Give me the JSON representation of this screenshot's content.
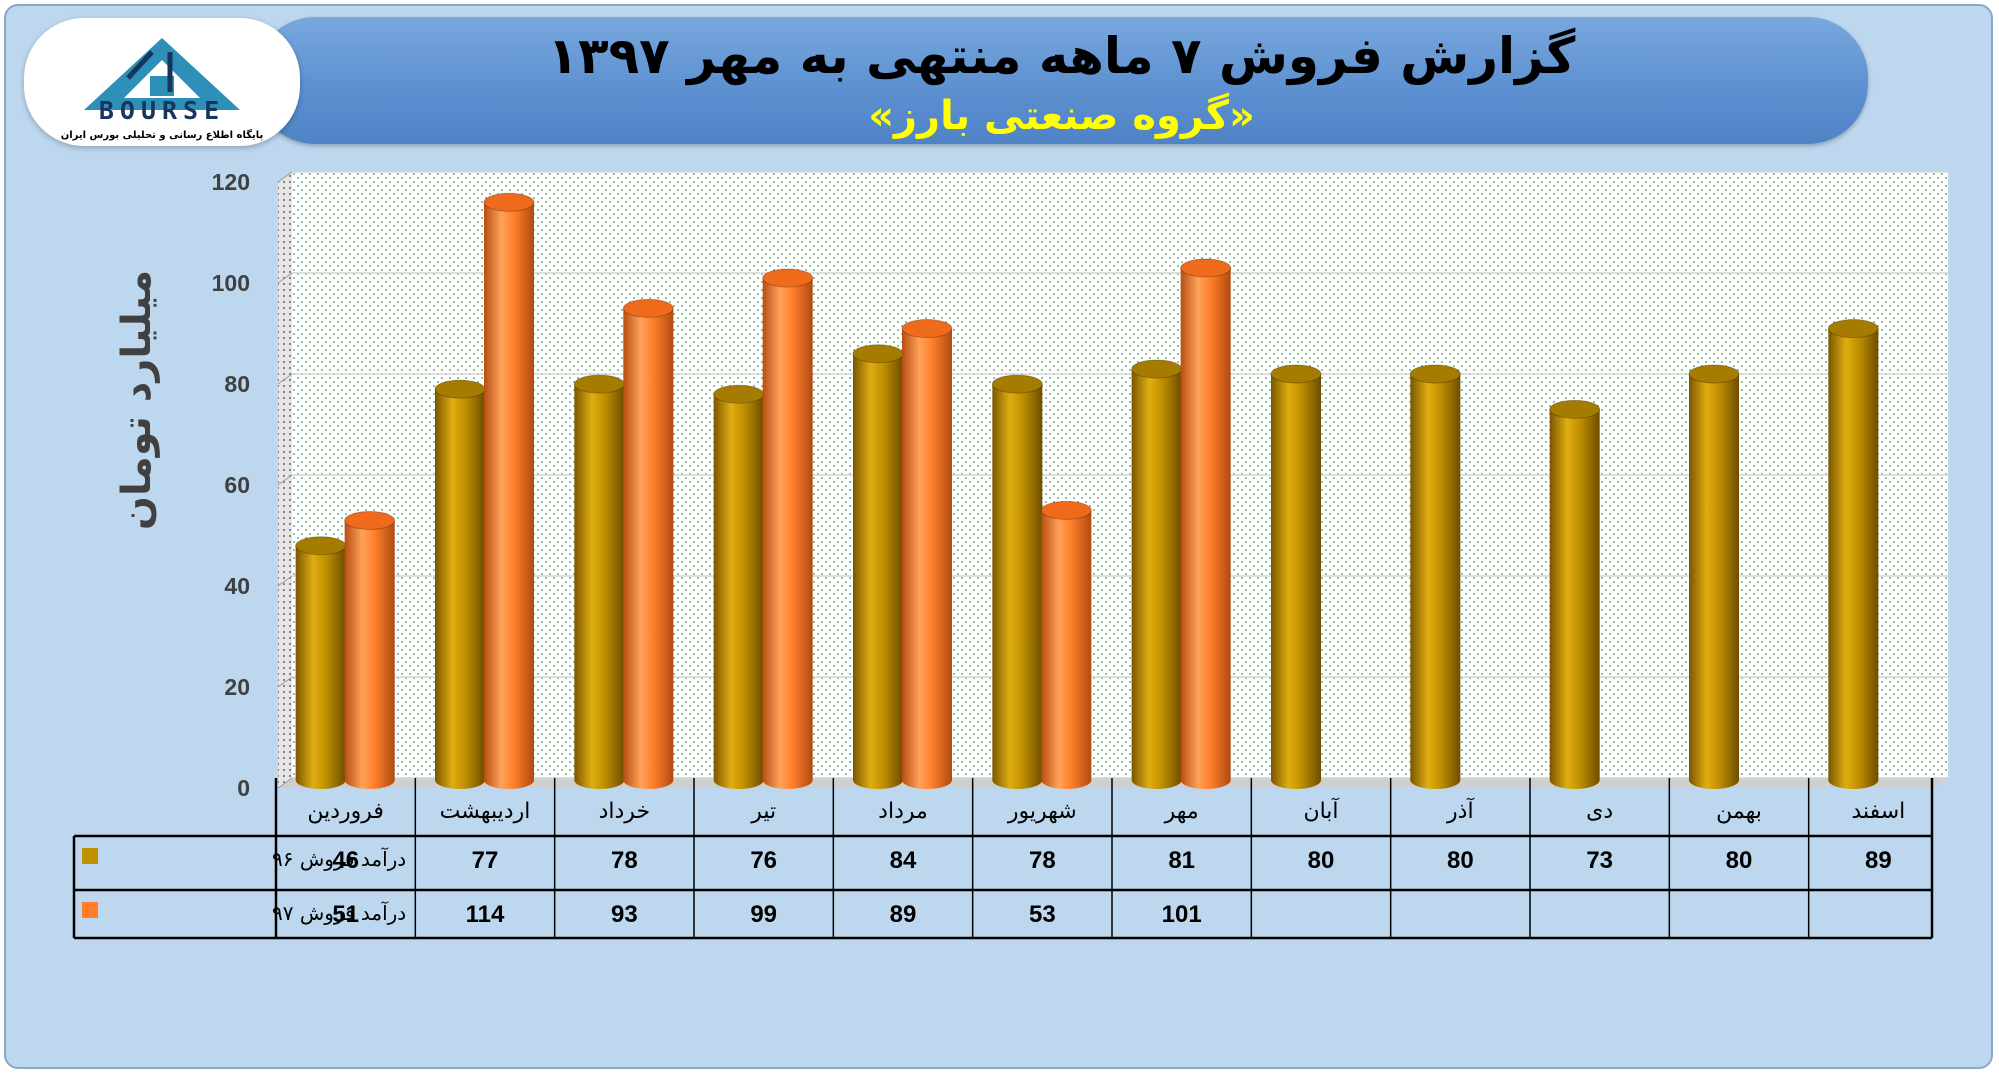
{
  "header": {
    "title": "گزارش فروش ۷ ماهه منتهی به مهر ۱۳۹۷",
    "subtitle": "«گروه صنعتی بارز»"
  },
  "logo": {
    "word": "BOURSE",
    "tagline": "پایگاه اطلاع رسانی و تحلیلی بورس ایران"
  },
  "colors": {
    "series_96": "#c09000",
    "series_97": "#ff7f2a",
    "background": "#bdd7ee",
    "banner": "#5b8fd0",
    "subtitle": "#ffff00"
  },
  "chart_data": {
    "type": "bar",
    "ylabel": "میلیارد تومان",
    "ylim": [
      0,
      120
    ],
    "yticks": [
      0,
      20,
      40,
      60,
      80,
      100,
      120
    ],
    "categories": [
      "فروردین",
      "اردیبهشت",
      "خرداد",
      "تیر",
      "مرداد",
      "شهریور",
      "مهر",
      "آبان",
      "آذر",
      "دی",
      "بهمن",
      "اسفند"
    ],
    "series": [
      {
        "name": "درآمد فروش ۹۶",
        "values": [
          46,
          77,
          78,
          76,
          84,
          78,
          81,
          80,
          80,
          73,
          80,
          89
        ]
      },
      {
        "name": "درآمد فروش ۹۷",
        "values": [
          51,
          114,
          93,
          99,
          89,
          53,
          101,
          null,
          null,
          null,
          null,
          null
        ]
      }
    ],
    "legend_position": "data-table-left",
    "grid": true
  }
}
